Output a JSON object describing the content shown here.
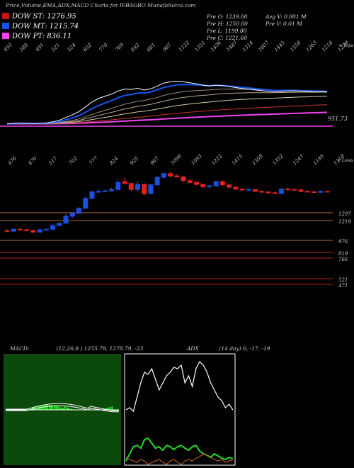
{
  "header": {
    "title": "Price,Volume,EMA,ADX,MACD Charts for IFBAGRO MunafaSutra.com"
  },
  "legend": {
    "dow_st": {
      "label": "DOW ST: 1276.95",
      "color": "#cc1111"
    },
    "dow_mt": {
      "label": "DOW MT: 1215.74",
      "color": "#1155ee"
    },
    "dow_pt": {
      "label": "DOW PT: 836.11",
      "color": "#ee44ee"
    }
  },
  "ohlc": {
    "pre_o": "Pre  O: 1239.00",
    "pre_h": "Pre  H: 1250.00",
    "pre_l": "Pre  L: 1199.80",
    "pre_c": "Pre  C: 1221.60",
    "avg_v": "Avg V: 0.001 M",
    "pre_v": "Pre  V: 0.01 M"
  },
  "top_panel": {
    "tick_labels": [
      "493",
      "580",
      "491",
      "521",
      "524",
      "652",
      "770",
      "769",
      "842",
      "881",
      "967",
      "1122",
      "1351",
      "1436",
      "1487",
      "1314",
      "1607",
      "1445",
      "1558",
      "1263",
      "1218",
      "1239"
    ],
    "corner_label": "< Tops",
    "ema_value_label": "951.73"
  },
  "price_panel": {
    "tick_labels": [
      "476",
      "470",
      "517",
      "702",
      "777",
      "824",
      "925",
      "967",
      "1096",
      "1093",
      "1222",
      "1415",
      "1358",
      "1352",
      "1241",
      "1195",
      "1218"
    ],
    "corner_label": "< Lows",
    "levels": [
      {
        "value": "1297",
        "color": "#b86a3c"
      },
      {
        "value": "1219",
        "color": "#b86a3c"
      },
      {
        "value": "976",
        "color": "#b86a3c"
      },
      {
        "value": "819",
        "color": "#bb2222"
      },
      {
        "value": "766",
        "color": "#bb2222"
      },
      {
        "value": "521",
        "color": "#bb2222"
      },
      {
        "value": "471",
        "color": "#bb2222"
      }
    ]
  },
  "macd": {
    "label": "MACD:",
    "values": "(12,26,9 ) 1255.79,  1278.79,  -23"
  },
  "adx": {
    "label": "ADX",
    "values": "(14  day) 6,  -17,  -19"
  },
  "colors": {
    "up_candle": "#1a4fe0",
    "down_candle": "#e02222",
    "macd_bg": "#0b4a0b",
    "macd_hist": "#22ff22",
    "adx_bg": "#000000",
    "adx_plus": "#22dd22",
    "adx_minus": "#cc6a22",
    "adx_line": "#ffffff"
  },
  "chart_data": {
    "type": "candlestick",
    "title": "Price,Volume,EMA,ADX,MACD Charts for IFBAGRO",
    "candles": [
      {
        "o": 506,
        "h": 521,
        "l": 488,
        "c": 500
      },
      {
        "o": 500,
        "h": 530,
        "l": 492,
        "c": 522
      },
      {
        "o": 522,
        "h": 535,
        "l": 505,
        "c": 515
      },
      {
        "o": 515,
        "h": 528,
        "l": 498,
        "c": 507
      },
      {
        "o": 507,
        "h": 515,
        "l": 482,
        "c": 490
      },
      {
        "o": 490,
        "h": 525,
        "l": 488,
        "c": 515
      },
      {
        "o": 515,
        "h": 532,
        "l": 505,
        "c": 520
      },
      {
        "o": 520,
        "h": 575,
        "l": 518,
        "c": 560
      },
      {
        "o": 560,
        "h": 600,
        "l": 552,
        "c": 585
      },
      {
        "o": 585,
        "h": 690,
        "l": 580,
        "c": 660
      },
      {
        "o": 660,
        "h": 700,
        "l": 640,
        "c": 690
      },
      {
        "o": 690,
        "h": 760,
        "l": 685,
        "c": 745
      },
      {
        "o": 745,
        "h": 870,
        "l": 740,
        "c": 850
      },
      {
        "o": 850,
        "h": 935,
        "l": 845,
        "c": 920
      },
      {
        "o": 920,
        "h": 945,
        "l": 905,
        "c": 925
      },
      {
        "o": 925,
        "h": 950,
        "l": 915,
        "c": 930
      },
      {
        "o": 930,
        "h": 965,
        "l": 925,
        "c": 945
      },
      {
        "o": 945,
        "h": 1050,
        "l": 940,
        "c": 1020
      },
      {
        "o": 1030,
        "h": 1075,
        "l": 1000,
        "c": 1010
      },
      {
        "o": 1010,
        "h": 1015,
        "l": 930,
        "c": 945
      },
      {
        "o": 945,
        "h": 1030,
        "l": 920,
        "c": 1000
      },
      {
        "o": 1000,
        "h": 1010,
        "l": 880,
        "c": 900
      },
      {
        "o": 900,
        "h": 1005,
        "l": 895,
        "c": 995
      },
      {
        "o": 995,
        "h": 1090,
        "l": 985,
        "c": 1075
      },
      {
        "o": 1075,
        "h": 1125,
        "l": 1065,
        "c": 1115
      },
      {
        "o": 1115,
        "h": 1135,
        "l": 1075,
        "c": 1090
      },
      {
        "o": 1090,
        "h": 1110,
        "l": 1070,
        "c": 1080
      },
      {
        "o": 1080,
        "h": 1090,
        "l": 1025,
        "c": 1040
      },
      {
        "o": 1040,
        "h": 1055,
        "l": 1010,
        "c": 1020
      },
      {
        "o": 1020,
        "h": 1030,
        "l": 990,
        "c": 1000
      },
      {
        "o": 1000,
        "h": 1010,
        "l": 960,
        "c": 975
      },
      {
        "o": 975,
        "h": 995,
        "l": 955,
        "c": 985
      },
      {
        "o": 985,
        "h": 1040,
        "l": 975,
        "c": 1030
      },
      {
        "o": 1030,
        "h": 1040,
        "l": 985,
        "c": 995
      },
      {
        "o": 995,
        "h": 1005,
        "l": 960,
        "c": 970
      },
      {
        "o": 970,
        "h": 975,
        "l": 940,
        "c": 950
      },
      {
        "o": 950,
        "h": 955,
        "l": 935,
        "c": 940
      },
      {
        "o": 940,
        "h": 955,
        "l": 930,
        "c": 945
      },
      {
        "o": 945,
        "h": 950,
        "l": 920,
        "c": 925
      },
      {
        "o": 925,
        "h": 935,
        "l": 905,
        "c": 920
      },
      {
        "o": 920,
        "h": 925,
        "l": 900,
        "c": 910
      },
      {
        "o": 910,
        "h": 925,
        "l": 895,
        "c": 905
      },
      {
        "o": 905,
        "h": 960,
        "l": 890,
        "c": 950
      },
      {
        "o": 950,
        "h": 965,
        "l": 930,
        "c": 945
      },
      {
        "o": 945,
        "h": 960,
        "l": 935,
        "c": 940
      },
      {
        "o": 940,
        "h": 955,
        "l": 915,
        "c": 925
      },
      {
        "o": 925,
        "h": 935,
        "l": 915,
        "c": 920
      },
      {
        "o": 920,
        "h": 930,
        "l": 910,
        "c": 915
      },
      {
        "o": 915,
        "h": 935,
        "l": 910,
        "c": 925
      },
      {
        "o": 925,
        "h": 930,
        "l": 915,
        "c": 918
      }
    ]
  }
}
